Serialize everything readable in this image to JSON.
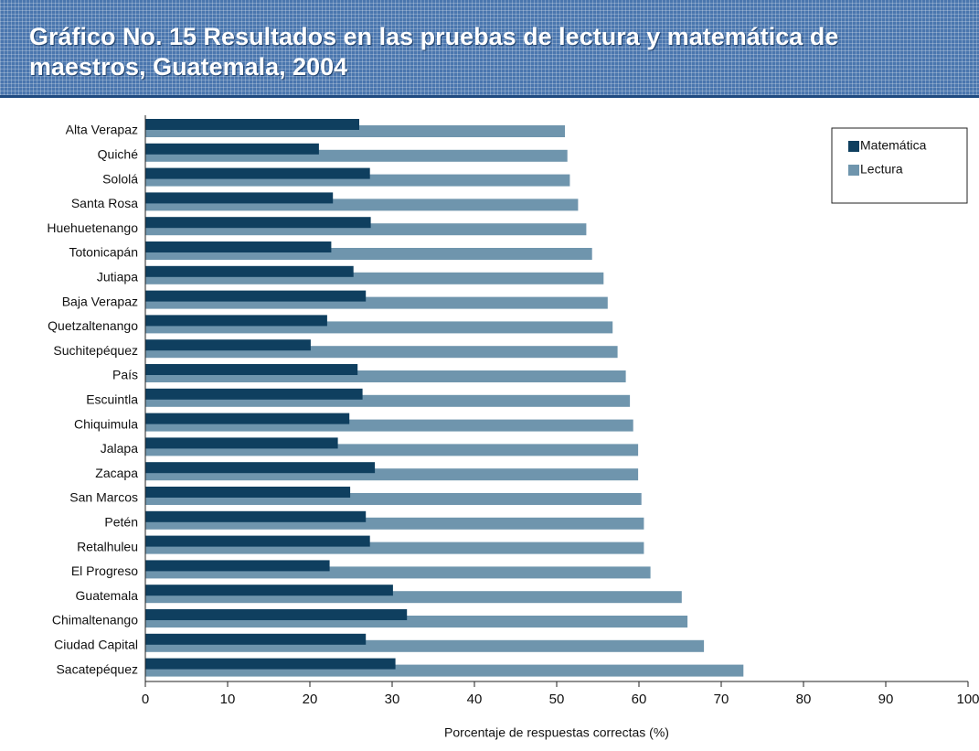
{
  "chart_data": {
    "type": "bar",
    "orientation": "horizontal",
    "title": "Gráfico No. 15 Resultados en las pruebas de lectura y matemática de maestros, Guatemala, 2004",
    "categories": [
      "Alta Verapaz",
      "Quiché",
      "Sololá",
      "Santa Rosa",
      "Huehuetenango",
      "Totonicapán",
      "Jutiapa",
      "Baja Verapaz",
      "Quetzaltenango",
      "Suchitepéquez",
      "País",
      "Escuintla",
      "Chiquimula",
      "Jalapa",
      "Zacapa",
      "San Marcos",
      "Petén",
      "Retalhuleu",
      "El Progreso",
      "Guatemala",
      "Chimaltenango",
      "Ciudad Capital",
      "Sacatepéquez"
    ],
    "series": [
      {
        "name": "Matemática",
        "color": "#0f3f5f",
        "values": [
          26.0,
          21.1,
          27.3,
          22.8,
          27.4,
          22.6,
          25.3,
          26.8,
          22.1,
          20.1,
          25.8,
          26.4,
          24.8,
          23.4,
          27.9,
          24.9,
          26.8,
          27.3,
          22.4,
          30.1,
          31.8,
          26.8,
          30.4
        ]
      },
      {
        "name": "Lectura",
        "color": "#6f95ad",
        "values": [
          51.0,
          51.3,
          51.6,
          52.6,
          53.6,
          54.3,
          55.7,
          56.2,
          56.8,
          57.4,
          58.4,
          58.9,
          59.3,
          59.9,
          59.9,
          60.3,
          60.6,
          60.6,
          61.4,
          65.2,
          65.9,
          67.9,
          72.7
        ]
      }
    ],
    "xlabel": "Porcentaje de respuestas correctas (%)",
    "xlim": [
      0,
      100
    ],
    "xticks": [
      0,
      10,
      20,
      30,
      40,
      50,
      60,
      70,
      80,
      90,
      100
    ],
    "legend": "upper right"
  }
}
